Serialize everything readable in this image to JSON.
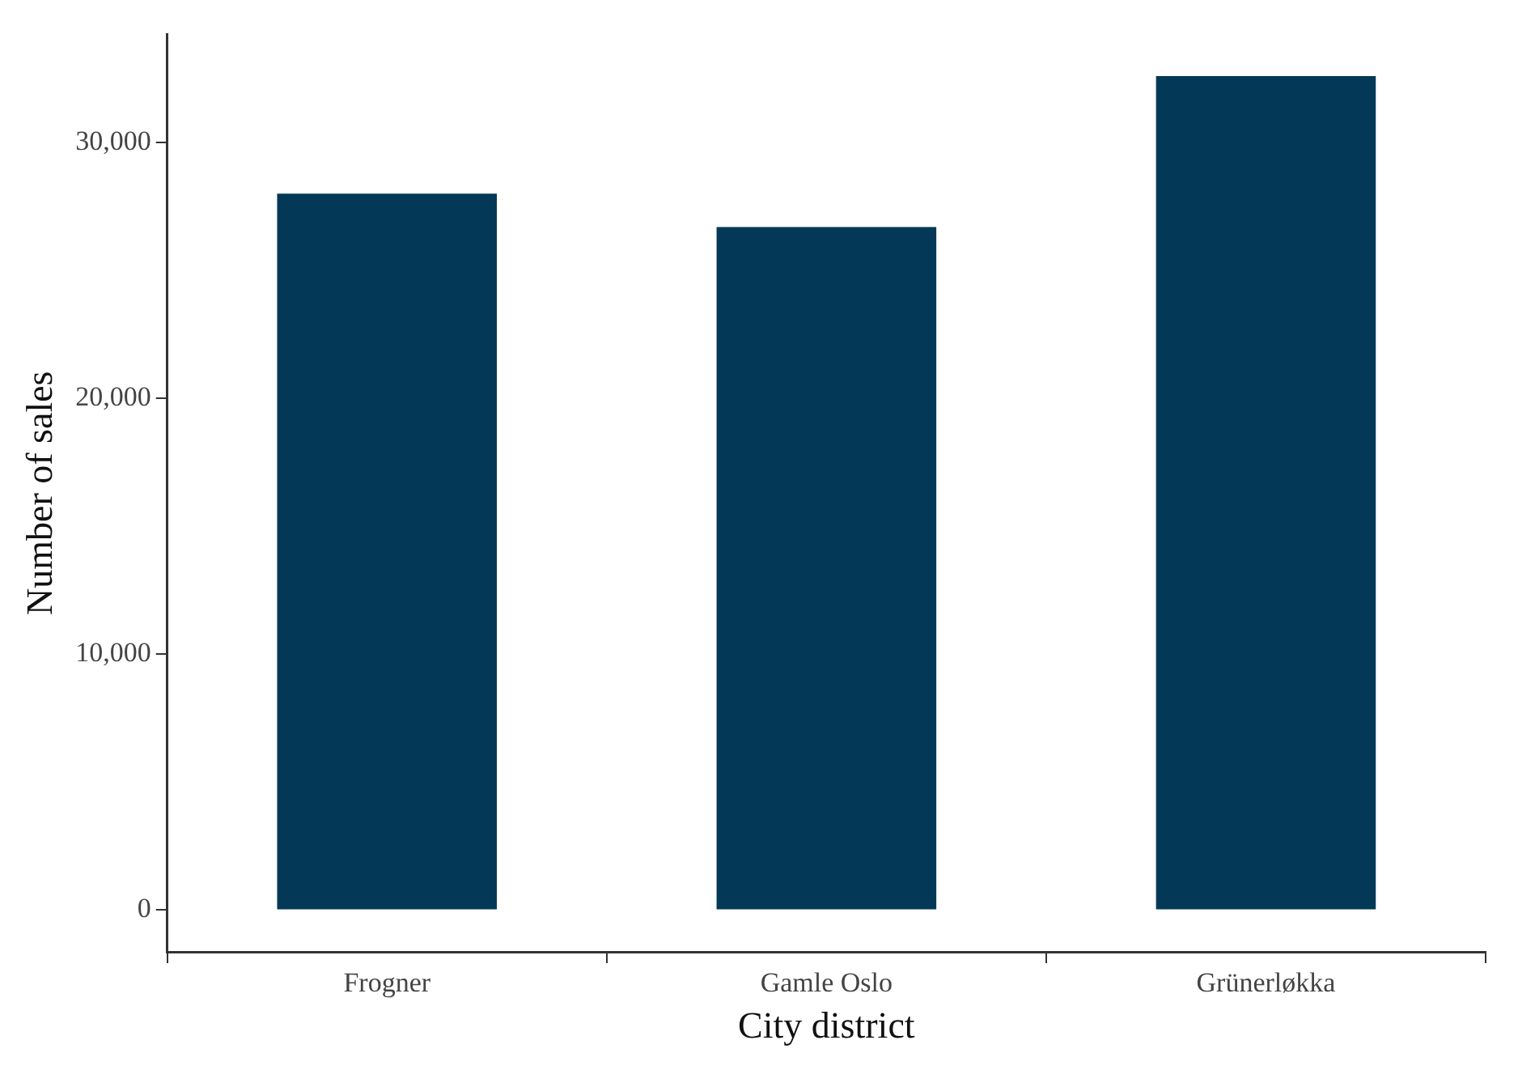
{
  "chart_data": {
    "type": "bar",
    "xlabel": "City district",
    "ylabel": "Number of sales",
    "categories": [
      "Frogner",
      "Gamle Oslo",
      "Grünerløkka"
    ],
    "values": [
      28000,
      26700,
      32600
    ],
    "color": "#033957",
    "ylim": [
      -1630,
      34230
    ],
    "yticks": [
      {
        "value": 0,
        "label": "0"
      },
      {
        "value": 10000,
        "label": "10,000"
      },
      {
        "value": 20000,
        "label": "20,000"
      },
      {
        "value": 30000,
        "label": "30,000"
      }
    ],
    "grid": false,
    "legend": false
  }
}
